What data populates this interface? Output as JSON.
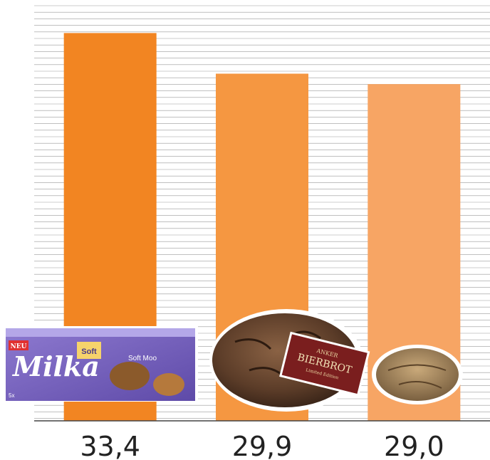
{
  "chart_data": {
    "type": "bar",
    "categories": [
      "Milka Soft Moo",
      "Anker Bierbrot",
      "Roll"
    ],
    "values": [
      33.4,
      29.9,
      29.0
    ],
    "value_labels": [
      "33,4",
      "29,9",
      "29,0"
    ],
    "ylim": [
      0,
      36
    ],
    "grid": true,
    "legend": "none",
    "colors": [
      "#F28522",
      "#F59741",
      "#F7A564"
    ]
  },
  "products": {
    "milka": {
      "brand": "Milka",
      "badge": "NEU",
      "tag": "Soft",
      "name": "Soft Moo",
      "pack": "5x"
    },
    "bierbrot": {
      "brand": "ANKER",
      "name": "BIERBROT",
      "edition": "Limited Edition"
    }
  }
}
